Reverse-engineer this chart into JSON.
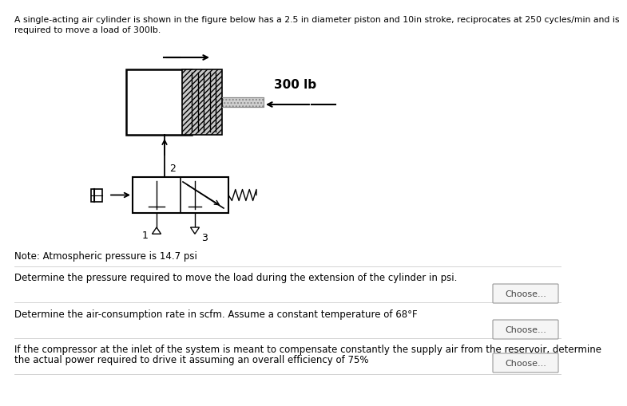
{
  "title_line1": "A single-acting air cylinder is shown in the figure below has a 2.5 in diameter piston and 10in stroke, reciprocates at 250 cycles/min and is",
  "title_line2": "required to move a load of 300lb.",
  "note_text": "Note: Atmospheric pressure is 14.7 psi",
  "question1": "Determine the pressure required to move the load during the extension of the cylinder in psi.",
  "question2": "Determine the air-consumption rate in scfm. Assume a constant temperature of 68°F",
  "question3_line1": "If the compressor at the inlet of the system is meant to compensate constantly the supply air from the reservoir, determine",
  "question3_line2": "the actual power required to drive it assuming an overall efficiency of 75%",
  "button_label": "Choose...",
  "background_color": "#ffffff",
  "text_color": "#000000",
  "button_color": "#f5f5f5",
  "button_border": "#999999",
  "font_size_title": 7.8,
  "font_size_body": 8.5,
  "font_size_note": 8.5,
  "load_label": "300 lb"
}
